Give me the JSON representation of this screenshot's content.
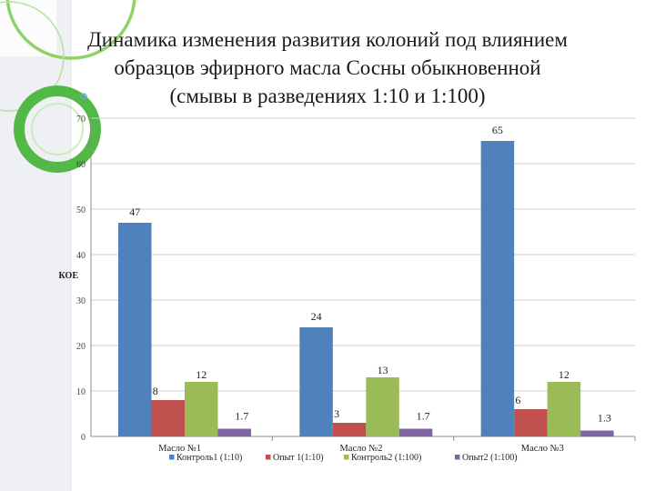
{
  "title_lines": [
    "Динамика изменения развития колоний под влиянием",
    "образцов эфирного масла Сосны обыкновенной",
    "(смывы в разведениях 1:10 и 1:100)"
  ],
  "colors": {
    "deco_green": "#8ed36a",
    "deco_green_dark": "#52b846",
    "deco_blue": "#7aa7d8",
    "axis": "#8c8c8c",
    "grid": "#d0d0d0"
  },
  "chart_data": {
    "type": "bar",
    "title": "Динамика изменения развития колоний под влиянием образцов эфирного масла Сосны обыкновенной (смывы в разведениях 1:10 и 1:100)",
    "ylabel": "КОЕ",
    "xlabel": "",
    "ylim": [
      0,
      70
    ],
    "yticks": [
      0,
      10,
      20,
      30,
      40,
      50,
      60,
      70
    ],
    "grid": true,
    "legend_position": "bottom",
    "categories": [
      "Масло №1",
      "Масло №2",
      "Масло №3"
    ],
    "series": [
      {
        "name": "Контроль1 (1:10)",
        "color": "#4f81bd",
        "values": [
          47,
          24,
          65
        ],
        "labels": [
          "47",
          "24",
          "65"
        ]
      },
      {
        "name": "Опыт 1(1:10)",
        "color": "#c0504d",
        "values": [
          8,
          3,
          6
        ],
        "labels": [
          "8",
          "3",
          "6"
        ]
      },
      {
        "name": "Контроль2 (1:100)",
        "color": "#9bbb59",
        "values": [
          12,
          13,
          12
        ],
        "labels": [
          "12",
          "13",
          "12"
        ]
      },
      {
        "name": "Опыт2 (1:100)",
        "color": "#8064a2",
        "values": [
          1.7,
          1.7,
          1.3
        ],
        "labels": [
          "1.7",
          "1.7",
          "1.3"
        ]
      }
    ]
  }
}
